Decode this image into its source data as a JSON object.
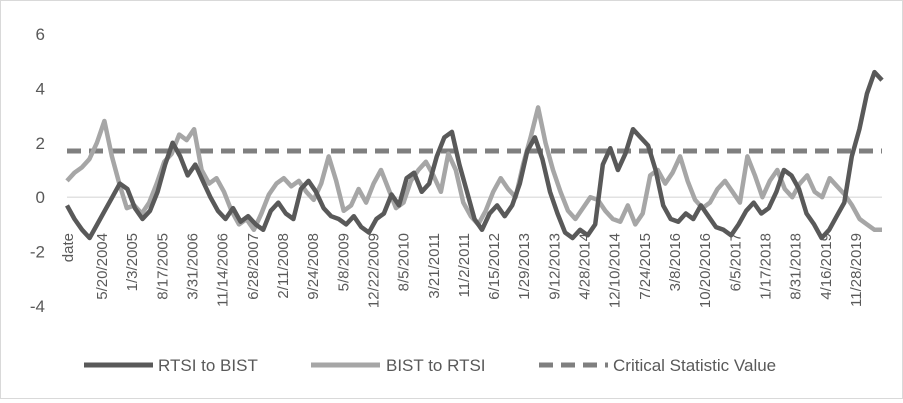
{
  "chart_data": {
    "type": "line",
    "title": "",
    "xlabel": "",
    "ylabel": "",
    "ylim": [
      -4,
      6
    ],
    "yticks": [
      -4,
      -2,
      0,
      2,
      4,
      6
    ],
    "grid": "horizontal zero line only",
    "legend_position": "bottom",
    "x_first_label": "date",
    "x_labels": [
      "5/20/2004",
      "1/3/2005",
      "8/17/2005",
      "3/31/2006",
      "11/14/2006",
      "6/28/2007",
      "2/11/2008",
      "9/24/2008",
      "5/8/2009",
      "12/22/2009",
      "8/5/2010",
      "3/21/2011",
      "11/2/2011",
      "6/15/2012",
      "1/29/2013",
      "9/12/2013",
      "4/28/2014",
      "12/10/2014",
      "7/24/2015",
      "3/8/2016",
      "10/20/2016",
      "6/5/2017",
      "1/17/2018",
      "8/31/2018",
      "4/16/2019",
      "11/28/2019"
    ],
    "x_label_display": [
      "5/20/2004",
      "1/3/2005",
      "8/17/2005",
      "3/31/2006",
      "11/14/2006",
      "6/28/2007",
      "2/11/2008",
      "9/24/2008",
      "5/8/2009",
      "12/22/2009",
      "8/5/2010",
      "3/21/2011",
      "11/2/2011",
      "6/15/2012",
      "1/29/2013",
      "9/12/2013",
      "4/28/2014",
      "12/10/2014",
      "7/24/2015",
      "3/8/2016",
      "10/20/2016",
      "6/5/2017",
      "1/17/2018",
      "8/31/2018",
      "4/16/2019",
      "11/28/2019"
    ],
    "series": [
      {
        "name": "RTSI to BIST",
        "color": "#595959",
        "style": "solid",
        "values": [
          -0.3,
          -0.8,
          -1.2,
          -1.5,
          -1.0,
          -0.5,
          0.0,
          0.5,
          0.3,
          -0.4,
          -0.8,
          -0.5,
          0.2,
          1.2,
          2.0,
          1.5,
          0.8,
          1.2,
          0.6,
          0.0,
          -0.5,
          -0.8,
          -0.4,
          -0.9,
          -0.7,
          -1.0,
          -1.2,
          -0.5,
          -0.2,
          -0.6,
          -0.8,
          0.3,
          0.6,
          0.2,
          -0.4,
          -0.7,
          -0.8,
          -1.0,
          -0.7,
          -1.1,
          -1.3,
          -0.8,
          -0.6,
          0.1,
          -0.3,
          0.7,
          0.9,
          0.2,
          0.5,
          1.5,
          2.2,
          2.4,
          1.2,
          0.2,
          -0.8,
          -1.2,
          -0.6,
          -0.3,
          -0.7,
          -0.3,
          0.5,
          1.7,
          2.2,
          1.4,
          0.2,
          -0.6,
          -1.3,
          -1.5,
          -1.2,
          -1.4,
          -1.0,
          1.2,
          1.8,
          1.0,
          1.6,
          2.5,
          2.2,
          1.9,
          1.0,
          -0.3,
          -0.8,
          -0.9,
          -0.6,
          -0.8,
          -0.3,
          -0.7,
          -1.1,
          -1.2,
          -1.4,
          -1.0,
          -0.5,
          -0.2,
          -0.6,
          -0.4,
          0.2,
          1.0,
          0.8,
          0.3,
          -0.6,
          -1.0,
          -1.5,
          -1.2,
          -0.7,
          -0.2,
          1.5,
          2.5,
          3.8,
          4.6,
          4.3
        ]
      },
      {
        "name": "BIST to RTSI",
        "color": "#a6a6a6",
        "style": "solid",
        "values": [
          0.6,
          0.9,
          1.1,
          1.4,
          2.0,
          2.8,
          1.5,
          0.5,
          -0.4,
          -0.3,
          -0.6,
          -0.2,
          0.5,
          1.3,
          1.6,
          2.3,
          2.1,
          2.5,
          1.0,
          0.5,
          0.7,
          0.2,
          -0.5,
          -1.0,
          -0.8,
          -1.2,
          -0.6,
          0.1,
          0.5,
          0.7,
          0.4,
          0.6,
          0.2,
          -0.1,
          0.5,
          1.5,
          0.6,
          -0.5,
          -0.3,
          0.3,
          -0.2,
          0.5,
          1.0,
          0.3,
          -0.4,
          -0.2,
          0.6,
          1.0,
          1.3,
          0.8,
          0.2,
          1.6,
          1.0,
          -0.2,
          -0.7,
          -1.0,
          -0.5,
          0.2,
          0.7,
          0.3,
          0.0,
          1.2,
          2.2,
          3.3,
          2.0,
          1.0,
          0.2,
          -0.5,
          -0.8,
          -0.4,
          0.0,
          -0.1,
          -0.5,
          -0.8,
          -0.9,
          -0.3,
          -1.0,
          -0.6,
          0.8,
          1.0,
          0.5,
          0.9,
          1.5,
          0.6,
          -0.1,
          -0.4,
          -0.2,
          0.3,
          0.6,
          0.2,
          -0.2,
          1.5,
          0.8,
          0.0,
          0.6,
          1.0,
          0.3,
          0.0,
          0.5,
          0.8,
          0.2,
          0.0,
          0.7,
          0.4,
          0.1,
          -0.3,
          -0.8,
          -1.0,
          -1.2,
          -1.2
        ]
      },
      {
        "name": "Critical Statistic Value",
        "color": "#7f7f7f",
        "style": "dashed",
        "constant": 1.7
      }
    ]
  }
}
